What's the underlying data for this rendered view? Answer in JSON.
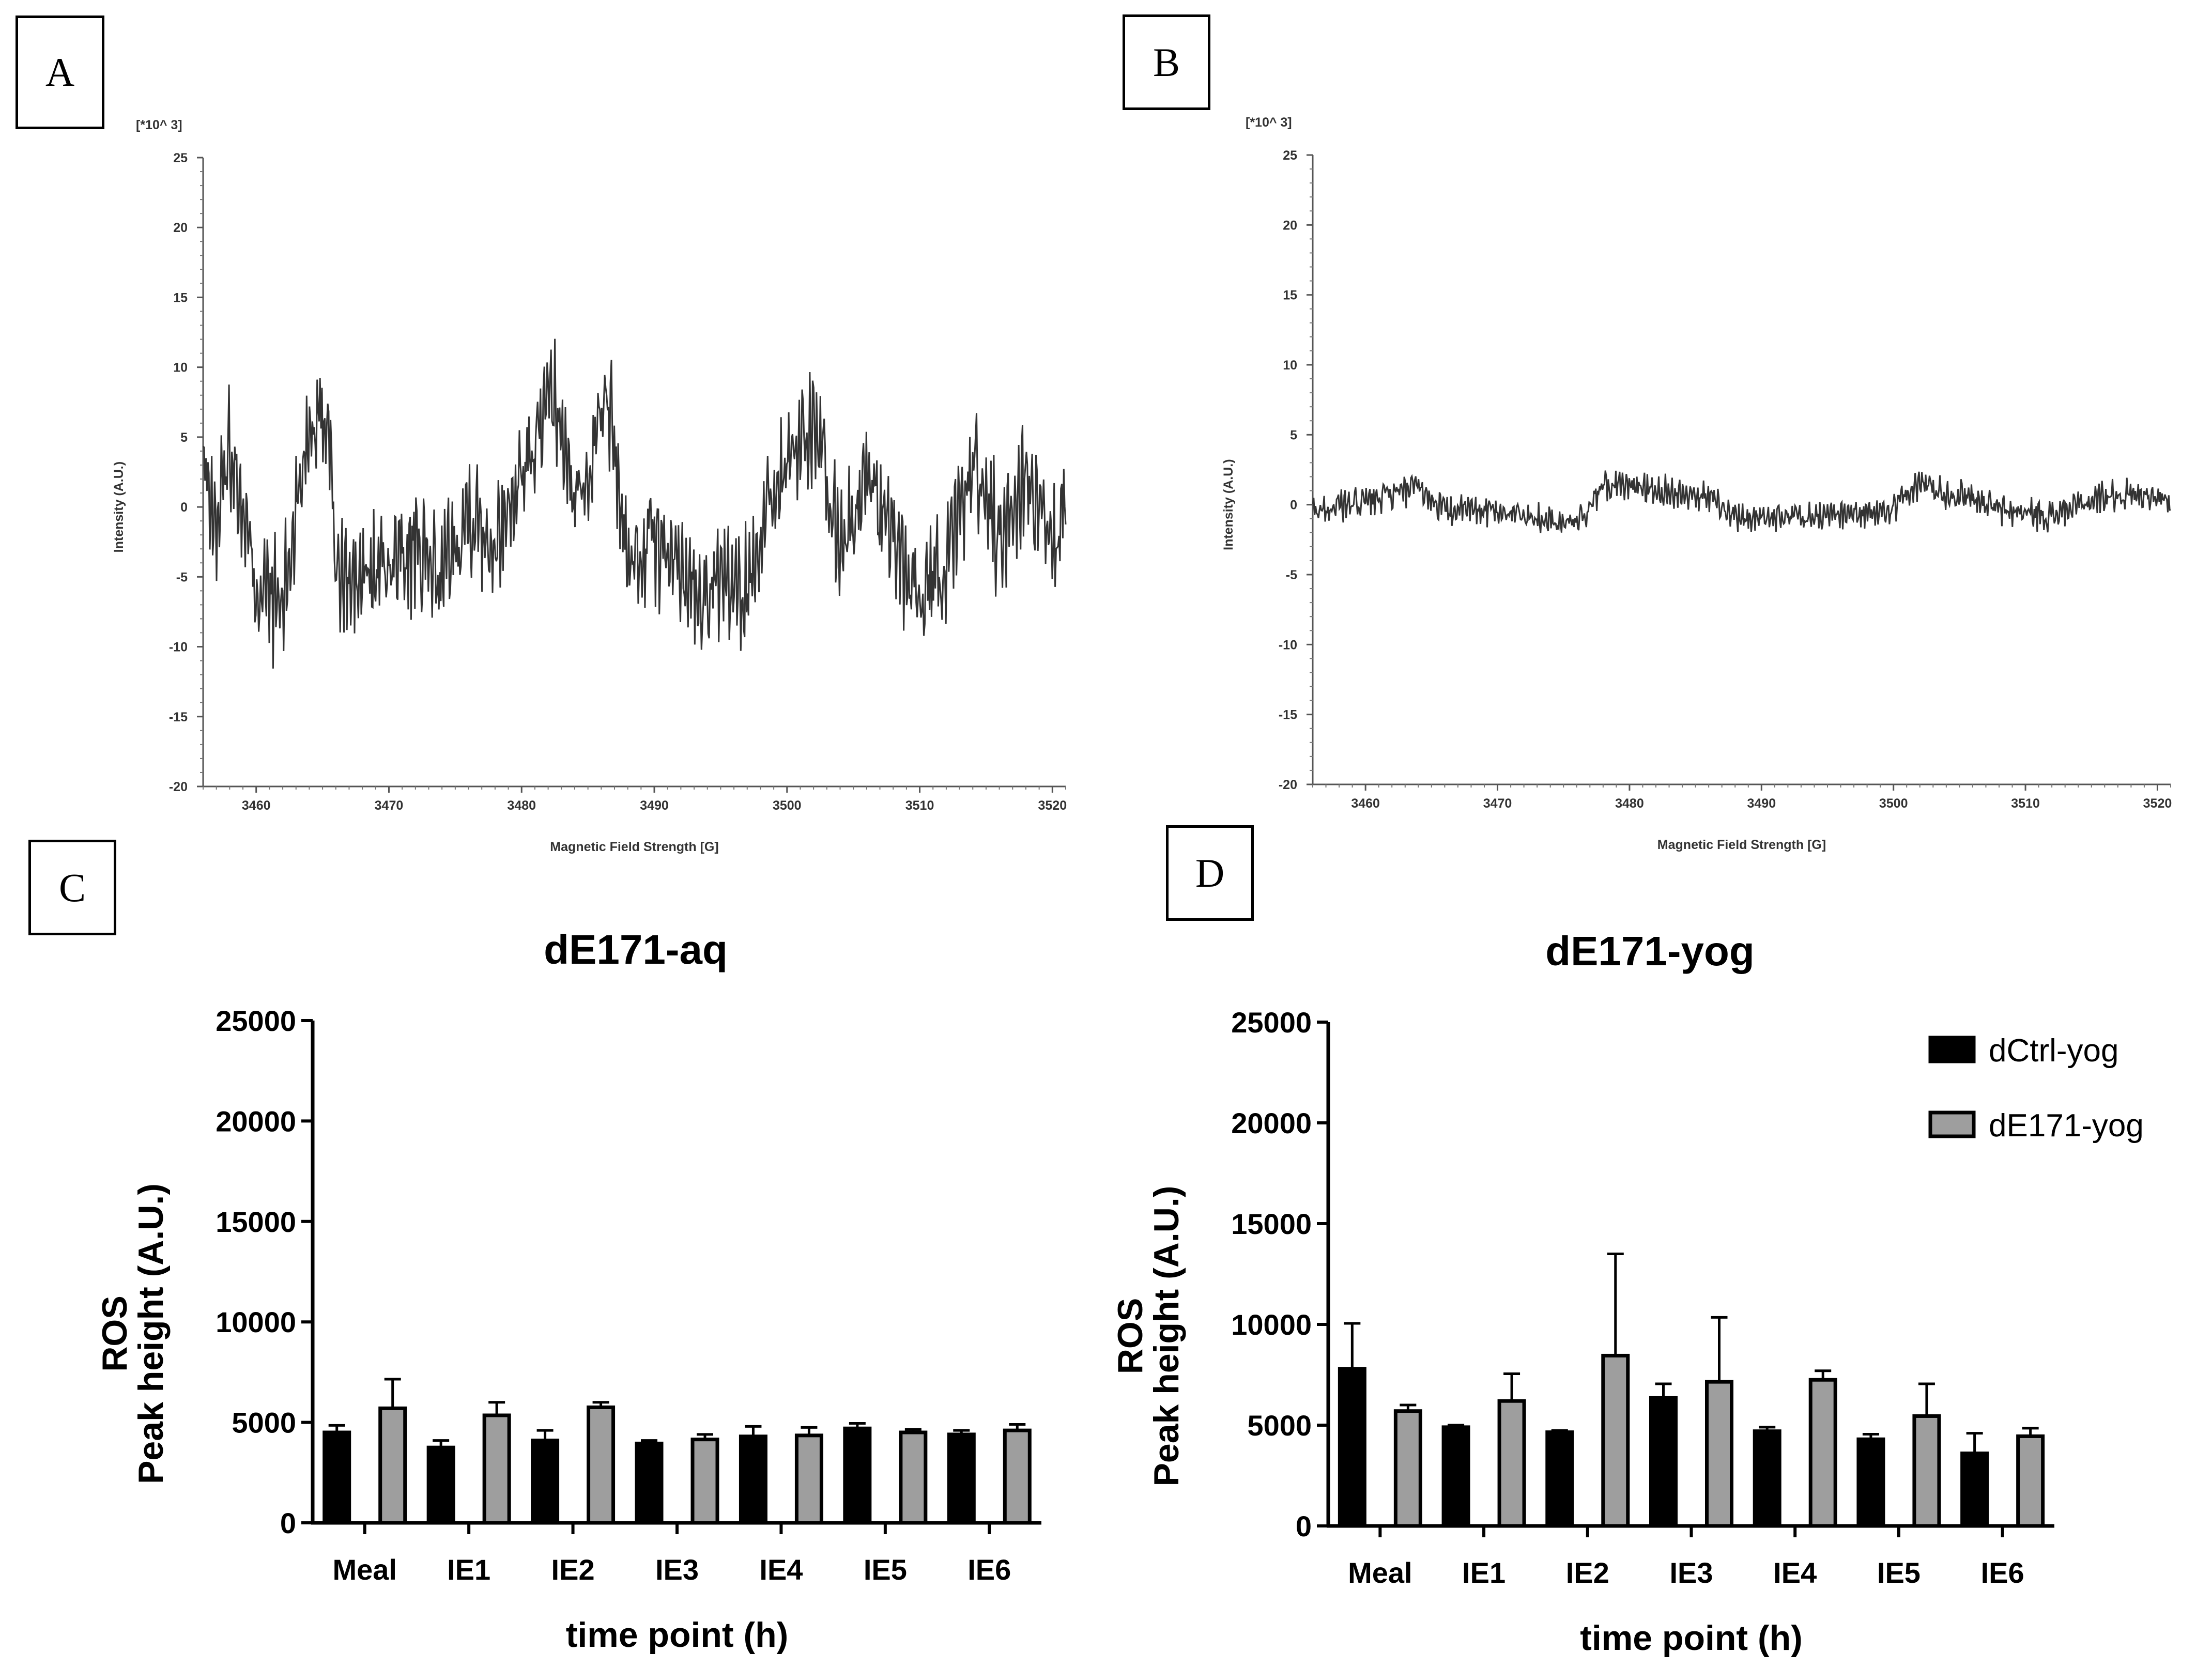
{
  "colors": {
    "series1": "#000000",
    "series2": "#9e9e9e",
    "trace": "#333333"
  },
  "panels": [
    {
      "label": "A"
    },
    {
      "label": "B"
    },
    {
      "label": "C"
    },
    {
      "label": "D"
    }
  ],
  "chart_data": [
    {
      "panel": "A",
      "type": "line",
      "title": "",
      "scale_label": "[*10^ 3]",
      "xlabel": "Magnetic Field Strength [G]",
      "ylabel": "Intensity (A.U.)",
      "xlim": [
        3456,
        3521
      ],
      "ylim": [
        -20,
        25
      ],
      "xticks": [
        3460,
        3470,
        3480,
        3490,
        3500,
        3510,
        3520
      ],
      "yticks": [
        25,
        20,
        15,
        10,
        5,
        0,
        -5,
        -10,
        -15,
        -20
      ],
      "noise_amplitude": 3.2,
      "x": [
        3456,
        3457,
        3458,
        3460,
        3462,
        3464,
        3465.5,
        3466,
        3467,
        3470,
        3472,
        3474,
        3476,
        3478,
        3480,
        3482.5,
        3484,
        3486.5,
        3488,
        3490,
        3492,
        3495,
        3497,
        3499,
        3502,
        3504,
        3506,
        3508,
        3510,
        3512,
        3514,
        3516,
        3518,
        3520,
        3521
      ],
      "y": [
        4,
        -2,
        6,
        -7,
        -9,
        8,
        8.5,
        -6,
        -7,
        -5,
        -4,
        -6,
        0,
        -3,
        3,
        9.5,
        0,
        10.5,
        -5,
        -3,
        -6,
        -8,
        -7,
        2,
        8,
        -4,
        3,
        -3,
        -8.5,
        -6,
        4,
        -3,
        3,
        -5,
        1
      ]
    },
    {
      "panel": "B",
      "type": "line",
      "title": "",
      "scale_label": "[*10^ 3]",
      "xlabel": "Magnetic Field Strength [G]",
      "ylabel": "Intensity (A.U.)",
      "xlim": [
        3456,
        3521
      ],
      "ylim": [
        -20,
        25
      ],
      "xticks": [
        3460,
        3470,
        3480,
        3490,
        3500,
        3510,
        3520
      ],
      "yticks": [
        25,
        20,
        15,
        10,
        5,
        0,
        -5,
        -10,
        -15,
        -20
      ],
      "noise_amplitude": 0.8,
      "x": [
        3456,
        3460,
        3464,
        3466,
        3470,
        3474,
        3476,
        3478,
        3480,
        3483,
        3486,
        3488,
        3490,
        3494,
        3498,
        3500,
        3502,
        3504,
        3506,
        3508,
        3512,
        3516,
        3520,
        3521
      ],
      "y": [
        -0.5,
        0.2,
        1.5,
        -0.5,
        -0.5,
        -1.5,
        -1.8,
        1.5,
        1.8,
        1.2,
        0.8,
        -1.0,
        -1.2,
        -1.0,
        -0.8,
        -0.5,
        2.0,
        1.0,
        0.8,
        -0.5,
        -1.0,
        0.8,
        1.0,
        -0.5
      ]
    },
    {
      "panel": "C",
      "type": "bar",
      "title": "dE171-aq",
      "xlabel": "time point (h)",
      "ylabel_lines": [
        "ROS",
        "Peak height (A.U.)"
      ],
      "ylim": [
        0,
        25000
      ],
      "yticks": [
        0,
        5000,
        10000,
        15000,
        20000,
        25000
      ],
      "categories": [
        "Meal",
        "IE1",
        "IE2",
        "IE3",
        "IE4",
        "IE5",
        "IE6"
      ],
      "series": [
        {
          "name": "dCtrl-yog",
          "values": [
            4500,
            3750,
            4100,
            3950,
            4300,
            4700,
            4400
          ],
          "errors": [
            350,
            350,
            500,
            150,
            500,
            250,
            200
          ]
        },
        {
          "name": "dE171-yog",
          "values": [
            5700,
            5350,
            5750,
            4150,
            4350,
            4500,
            4600
          ],
          "errors": [
            1450,
            650,
            250,
            250,
            400,
            150,
            300
          ]
        }
      ],
      "legend_visible": false
    },
    {
      "panel": "D",
      "type": "bar",
      "title": "dE171-yog",
      "xlabel": "time point (h)",
      "ylabel_lines": [
        "ROS",
        "Peak height (A.U.)"
      ],
      "ylim": [
        0,
        25000
      ],
      "yticks": [
        0,
        5000,
        10000,
        15000,
        20000,
        25000
      ],
      "categories": [
        "Meal",
        "IE1",
        "IE2",
        "IE3",
        "IE4",
        "IE5",
        "IE6"
      ],
      "series": [
        {
          "name": "dCtrl-yog",
          "values": [
            7800,
            4900,
            4650,
            6350,
            4700,
            4300,
            3600
          ],
          "errors": [
            2250,
            100,
            80,
            700,
            200,
            250,
            1000
          ]
        },
        {
          "name": "dE171-yog",
          "values": [
            5700,
            6200,
            8450,
            7150,
            7250,
            5450,
            4450
          ],
          "errors": [
            300,
            1350,
            5050,
            3200,
            450,
            1600,
            400
          ]
        }
      ],
      "legend_visible": true,
      "legend_position": "top-right"
    }
  ]
}
